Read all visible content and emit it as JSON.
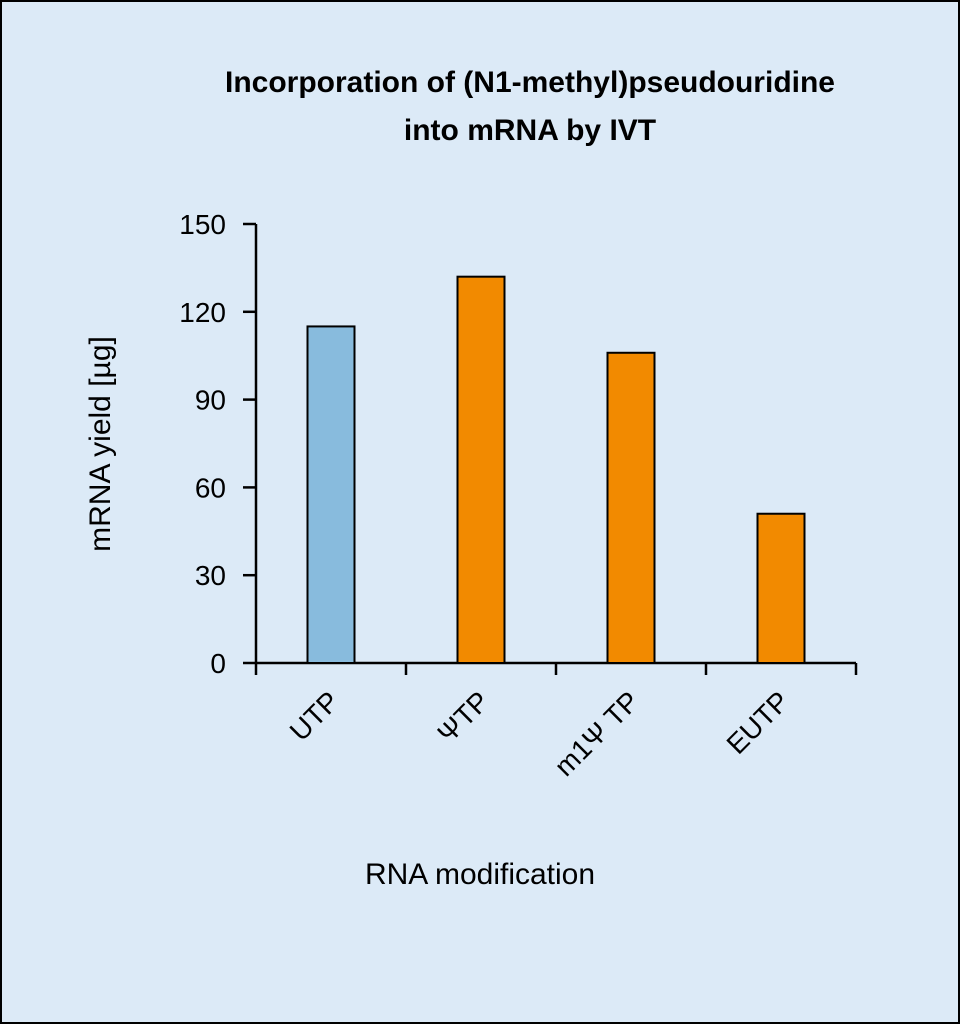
{
  "chart_data": {
    "type": "bar",
    "title": "Incorporation of (N1-methyl)pseudouridine",
    "subtitle": "into mRNA by IVT",
    "xlabel": "RNA modification",
    "ylabel": "mRNA yield [µg]",
    "categories": [
      "UTP",
      "ΨTP",
      "m1Ψ TP",
      "EUTP"
    ],
    "values": [
      115,
      132,
      106,
      51
    ],
    "bar_colors": [
      "#88bbdd",
      "#f28a00",
      "#f28a00",
      "#f28a00"
    ],
    "ylim": [
      0,
      150
    ],
    "yticks": [
      0,
      30,
      60,
      90,
      120,
      150
    ],
    "grid": false,
    "legend": "none"
  },
  "colors": {
    "background": "#dceaf7",
    "frame": "#000000",
    "bar_outline": "#000000"
  }
}
